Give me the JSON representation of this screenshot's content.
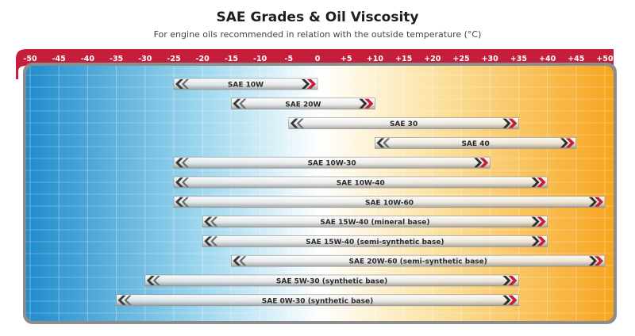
{
  "chart_data": {
    "type": "range-bar",
    "title": "SAE Grades & Oil Viscosity",
    "subtitle": "For engine oils recommended in relation with the outside temperature (°C)",
    "x_ticks": [
      "-50",
      "-45",
      "-40",
      "-35",
      "-30",
      "-25",
      "-20",
      "-15",
      "-10",
      "-5",
      "0",
      "+5",
      "+10",
      "+15",
      "+20",
      "+25",
      "+30",
      "+35",
      "+40",
      "+45",
      "+50"
    ],
    "xlim": [
      -50,
      50
    ],
    "grid": true,
    "background_gradient": [
      "#1f8ccc",
      "#9fd8ee",
      "#ffffff",
      "#fbe2a0",
      "#f7a51e"
    ],
    "colors": {
      "axis_band": "#c41e3a",
      "bar_arrow": "#c41e3a",
      "bar_tail": "#3a3a3a",
      "frame": "#8c8c8c"
    },
    "bars": [
      {
        "label": "SAE 10W",
        "min": -25,
        "max": 0
      },
      {
        "label": "SAE 20W",
        "min": -15,
        "max": 10
      },
      {
        "label": "SAE 30",
        "min": -5,
        "max": 35
      },
      {
        "label": "SAE 40",
        "min": 10,
        "max": 45
      },
      {
        "label": "SAE 10W-30",
        "min": -25,
        "max": 30
      },
      {
        "label": "SAE 10W-40",
        "min": -25,
        "max": 40
      },
      {
        "label": "SAE 10W-60",
        "min": -25,
        "max": 50
      },
      {
        "label": "SAE 15W-40 (mineral base)",
        "min": -20,
        "max": 40
      },
      {
        "label": "SAE 15W-40 (semi-synthetic base)",
        "min": -20,
        "max": 40
      },
      {
        "label": "SAE 20W-60 (semi-synthetic base)",
        "min": -15,
        "max": 50
      },
      {
        "label": "SAE 5W-30 (synthetic base)",
        "min": -30,
        "max": 35
      },
      {
        "label": "SAE 0W-30 (synthetic base)",
        "min": -35,
        "max": 35
      }
    ]
  }
}
